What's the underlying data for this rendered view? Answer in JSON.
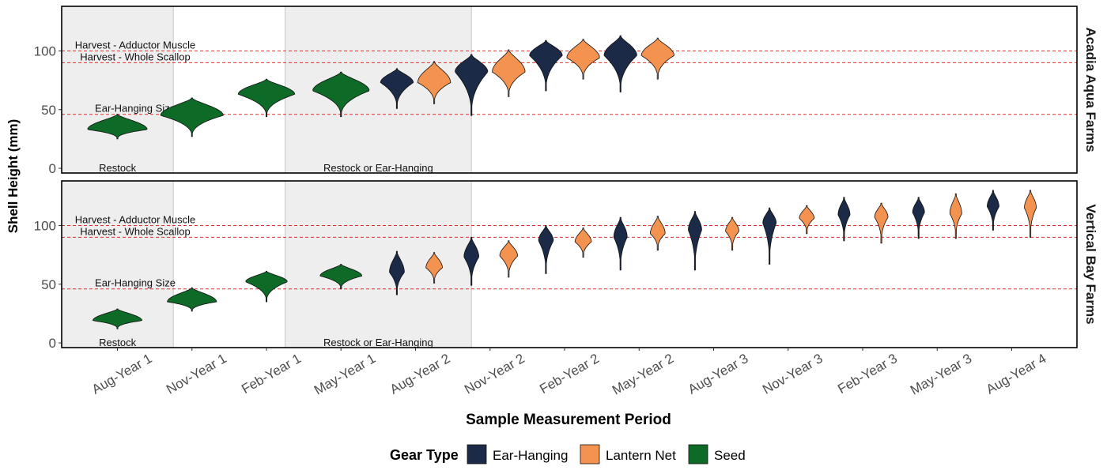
{
  "chart_data": {
    "type": "violin",
    "xlabel": "Sample Measurement Period",
    "ylabel": "Shell Height (mm)",
    "ylim": [
      -4,
      138
    ],
    "yticks": [
      0,
      50,
      100
    ],
    "categories": [
      "Aug-Year 1",
      "Nov-Year 1",
      "Feb-Year 1",
      "May-Year 1",
      "Aug-Year 2",
      "Nov-Year 2",
      "Feb-Year 2",
      "May-Year 2",
      "Aug-Year 3",
      "Nov-Year 3",
      "Feb-Year 3",
      "May-Year 3",
      "Aug-Year 4"
    ],
    "legend": {
      "title": "Gear Type",
      "position": "bottom",
      "items": [
        {
          "name": "Ear-Hanging",
          "color": "#1b2a47"
        },
        {
          "name": "Lantern Net",
          "color": "#f4924f"
        },
        {
          "name": "Seed",
          "color": "#0e6a27"
        }
      ]
    },
    "reference_lines": [
      {
        "label": "Harvest - Adductor Muscle",
        "y": 100
      },
      {
        "label": "Harvest - Whole Scallop",
        "y": 90
      },
      {
        "label": "Ear-Hanging Size",
        "y": 46
      }
    ],
    "line_color": "#e0302a",
    "shaded_periods": [
      {
        "label": "Restock",
        "from": "Aug-Year 1",
        "to": "Aug-Year 1"
      },
      {
        "label": "Restock or Ear-Hanging",
        "from": "May-Year 1",
        "to": "Aug-Year 2"
      }
    ],
    "panels": [
      {
        "facet": "Acadia Aqua Farms",
        "violins": [
          {
            "period": "Aug-Year 1",
            "gear": "Seed",
            "median": 33,
            "min": 25,
            "max": 46,
            "max_half_width": 0.4
          },
          {
            "period": "Nov-Year 1",
            "gear": "Seed",
            "median": 45,
            "min": 27,
            "max": 60,
            "max_half_width": 0.42
          },
          {
            "period": "Feb-Year 1",
            "gear": "Seed",
            "median": 63,
            "min": 44,
            "max": 76,
            "max_half_width": 0.38
          },
          {
            "period": "May-Year 1",
            "gear": "Seed",
            "median": 66,
            "min": 44,
            "max": 82,
            "max_half_width": 0.38
          },
          {
            "period": "Aug-Year 2",
            "gear": "Ear-Hanging",
            "median": 73,
            "min": 51,
            "max": 85,
            "max_half_width": 0.22
          },
          {
            "period": "Aug-Year 2",
            "gear": "Lantern Net",
            "median": 73,
            "min": 55,
            "max": 91,
            "max_half_width": 0.22
          },
          {
            "period": "Nov-Year 2",
            "gear": "Ear-Hanging",
            "median": 82,
            "min": 45,
            "max": 97,
            "max_half_width": 0.22
          },
          {
            "period": "Nov-Year 2",
            "gear": "Lantern Net",
            "median": 82,
            "min": 61,
            "max": 101,
            "max_half_width": 0.22
          },
          {
            "period": "Feb-Year 2",
            "gear": "Ear-Hanging",
            "median": 96,
            "min": 66,
            "max": 109,
            "max_half_width": 0.22
          },
          {
            "period": "Feb-Year 2",
            "gear": "Lantern Net",
            "median": 94,
            "min": 76,
            "max": 110,
            "max_half_width": 0.22
          },
          {
            "period": "May-Year 2",
            "gear": "Ear-Hanging",
            "median": 96,
            "min": 65,
            "max": 113,
            "max_half_width": 0.22
          },
          {
            "period": "May-Year 2",
            "gear": "Lantern Net",
            "median": 96,
            "min": 76,
            "max": 111,
            "max_half_width": 0.22
          }
        ]
      },
      {
        "facet": "Vertical Bay Farms",
        "violins": [
          {
            "period": "Aug-Year 1",
            "gear": "Seed",
            "median": 19,
            "min": 12,
            "max": 29,
            "max_half_width": 0.33
          },
          {
            "period": "Nov-Year 1",
            "gear": "Seed",
            "median": 35,
            "min": 27,
            "max": 47,
            "max_half_width": 0.33
          },
          {
            "period": "Feb-Year 1",
            "gear": "Seed",
            "median": 52,
            "min": 35,
            "max": 61,
            "max_half_width": 0.28
          },
          {
            "period": "May-Year 1",
            "gear": "Seed",
            "median": 57,
            "min": 46,
            "max": 67,
            "max_half_width": 0.28
          },
          {
            "period": "Aug-Year 2",
            "gear": "Ear-Hanging",
            "median": 60,
            "min": 41,
            "max": 78,
            "max_half_width": 0.1
          },
          {
            "period": "Aug-Year 2",
            "gear": "Lantern Net",
            "median": 64,
            "min": 51,
            "max": 77,
            "max_half_width": 0.11
          },
          {
            "period": "Nov-Year 2",
            "gear": "Ear-Hanging",
            "median": 73,
            "min": 49,
            "max": 90,
            "max_half_width": 0.1
          },
          {
            "period": "Nov-Year 2",
            "gear": "Lantern Net",
            "median": 74,
            "min": 56,
            "max": 87,
            "max_half_width": 0.12
          },
          {
            "period": "Feb-Year 2",
            "gear": "Ear-Hanging",
            "median": 87,
            "min": 59,
            "max": 100,
            "max_half_width": 0.1
          },
          {
            "period": "Feb-Year 2",
            "gear": "Lantern Net",
            "median": 86,
            "min": 73,
            "max": 98,
            "max_half_width": 0.11
          },
          {
            "period": "May-Year 2",
            "gear": "Ear-Hanging",
            "median": 90,
            "min": 62,
            "max": 107,
            "max_half_width": 0.09
          },
          {
            "period": "May-Year 2",
            "gear": "Lantern Net",
            "median": 93,
            "min": 79,
            "max": 108,
            "max_half_width": 0.1
          },
          {
            "period": "Aug-Year 3",
            "gear": "Ear-Hanging",
            "median": 96,
            "min": 62,
            "max": 112,
            "max_half_width": 0.09
          },
          {
            "period": "Aug-Year 3",
            "gear": "Lantern Net",
            "median": 95,
            "min": 79,
            "max": 107,
            "max_half_width": 0.09
          },
          {
            "period": "Nov-Year 3",
            "gear": "Ear-Hanging",
            "median": 102,
            "min": 67,
            "max": 115,
            "max_half_width": 0.09
          },
          {
            "period": "Nov-Year 3",
            "gear": "Lantern Net",
            "median": 106,
            "min": 93,
            "max": 117,
            "max_half_width": 0.1
          },
          {
            "period": "Feb-Year 3",
            "gear": "Ear-Hanging",
            "median": 109,
            "min": 87,
            "max": 124,
            "max_half_width": 0.08
          },
          {
            "period": "Feb-Year 3",
            "gear": "Lantern Net",
            "median": 107,
            "min": 85,
            "max": 119,
            "max_half_width": 0.09
          },
          {
            "period": "May-Year 3",
            "gear": "Ear-Hanging",
            "median": 111,
            "min": 89,
            "max": 124,
            "max_half_width": 0.08
          },
          {
            "period": "May-Year 3",
            "gear": "Lantern Net",
            "median": 110,
            "min": 89,
            "max": 127,
            "max_half_width": 0.08
          },
          {
            "period": "Aug-Year 4",
            "gear": "Ear-Hanging",
            "median": 116,
            "min": 96,
            "max": 130,
            "max_half_width": 0.08
          },
          {
            "period": "Aug-Year 4",
            "gear": "Lantern Net",
            "median": 115,
            "min": 90,
            "max": 130,
            "max_half_width": 0.08
          }
        ]
      }
    ]
  }
}
